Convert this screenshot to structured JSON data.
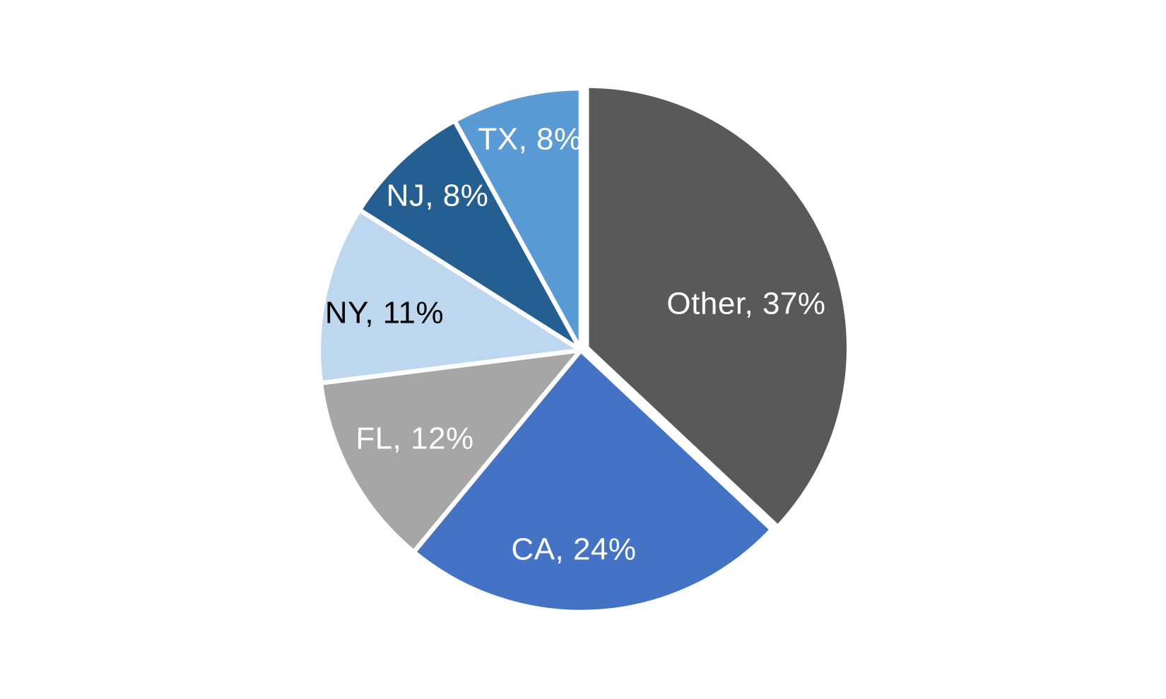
{
  "page": {
    "background_color": "#ffffff"
  },
  "chart_data": {
    "type": "pie",
    "title": "",
    "legend": "none",
    "start_angle_deg": 0,
    "direction": "clockwise",
    "separator_color": "#ffffff",
    "data_label_format": "{label}, {value}%",
    "slices": [
      {
        "label": "Other",
        "value": 37,
        "color": "#595959",
        "label_color": "#ffffff",
        "label_text": "Other, 37%",
        "exploded": true
      },
      {
        "label": "CA",
        "value": 24,
        "color": "#4472C4",
        "label_color": "#ffffff",
        "label_text": "CA, 24%",
        "exploded": false
      },
      {
        "label": "FL",
        "value": 12,
        "color": "#A6A6A6",
        "label_color": "#ffffff",
        "label_text": "FL, 12%",
        "exploded": false
      },
      {
        "label": "NY",
        "value": 11,
        "color": "#BDD7EE",
        "label_color": "#000000",
        "label_text": "NY, 11%",
        "exploded": false
      },
      {
        "label": "NJ",
        "value": 8,
        "color": "#255E91",
        "label_color": "#ffffff",
        "label_text": "NJ, 8%",
        "exploded": false
      },
      {
        "label": "TX",
        "value": 8,
        "color": "#5B9BD5",
        "label_color": "#ffffff",
        "label_text": "TX, 8%",
        "exploded": false
      }
    ]
  }
}
